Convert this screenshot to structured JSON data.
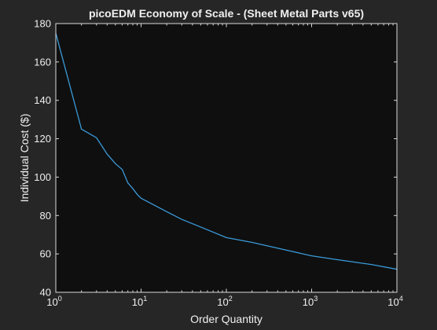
{
  "figure": {
    "background": "#262626",
    "axes_background": "#0f0f0f"
  },
  "chart_data": {
    "type": "line",
    "title": "picoEDM Economy of Scale - (Sheet Metal Parts v65)",
    "xlabel": "Order Quantity",
    "ylabel": "Individual Cost ($)",
    "xscale": "log",
    "xlim": [
      1,
      10000
    ],
    "ylim": [
      40,
      180
    ],
    "grid": false,
    "x_ticks": [
      {
        "value": 1,
        "base": "10",
        "exp": "0"
      },
      {
        "value": 10,
        "base": "10",
        "exp": "1"
      },
      {
        "value": 100,
        "base": "10",
        "exp": "2"
      },
      {
        "value": 1000,
        "base": "10",
        "exp": "3"
      },
      {
        "value": 10000,
        "base": "10",
        "exp": "4"
      }
    ],
    "y_ticks": [
      {
        "value": 40,
        "label": "40"
      },
      {
        "value": 60,
        "label": "60"
      },
      {
        "value": 80,
        "label": "80"
      },
      {
        "value": 100,
        "label": "100"
      },
      {
        "value": 120,
        "label": "120"
      },
      {
        "value": 140,
        "label": "140"
      },
      {
        "value": 160,
        "label": "160"
      },
      {
        "value": 180,
        "label": "180"
      }
    ],
    "series": [
      {
        "color": "#3a9ad9",
        "x": [
          1,
          2,
          3,
          4,
          5,
          6,
          7,
          8,
          9,
          10,
          20,
          30,
          50,
          100,
          200,
          500,
          1000,
          2000,
          5000,
          10000
        ],
        "y": [
          175,
          125,
          120.5,
          112,
          107,
          104,
          97,
          94,
          91,
          89,
          82,
          78,
          74,
          68.5,
          66,
          62,
          59,
          57,
          54.5,
          52
        ]
      }
    ],
    "axis_color": "#d9d9d9",
    "text_color": "#f0f0f0"
  }
}
